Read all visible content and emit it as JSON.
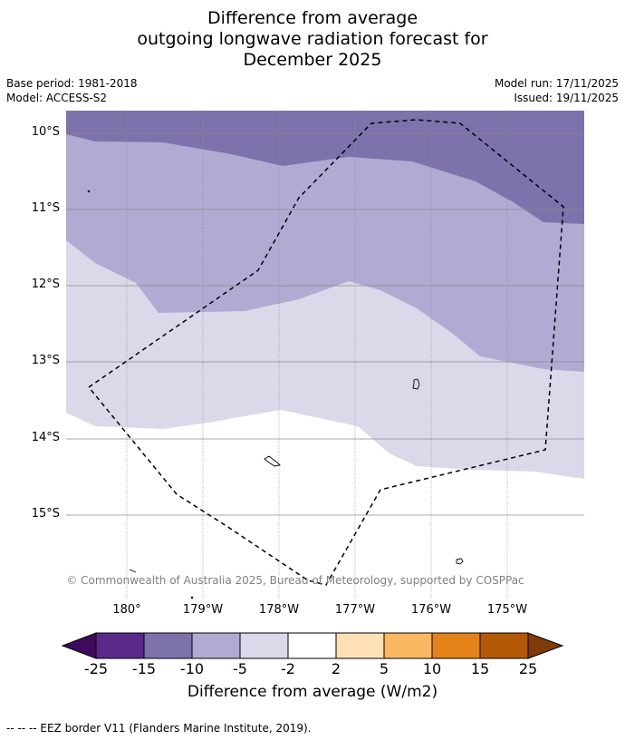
{
  "title": {
    "line1": "Difference from average",
    "line2": "outgoing longwave radiation forecast for",
    "line3": "December 2025"
  },
  "meta": {
    "base_period": "Base period: 1981-2018",
    "model": "Model: ACCESS-S2",
    "model_run": "Model run: 17/11/2025",
    "issued": "Issued: 19/11/2025"
  },
  "axes": {
    "y_labels": [
      "10°S",
      "11°S",
      "12°S",
      "13°S",
      "14°S",
      "15°S"
    ],
    "x_labels": [
      "180°",
      "179°W",
      "178°W",
      "177°W",
      "176°W",
      "175°W"
    ]
  },
  "colorbar": {
    "ticks": [
      "-25",
      "-15",
      "-10",
      "-5",
      "-2",
      "2",
      "5",
      "10",
      "15",
      "25"
    ],
    "colors": [
      "#3f0a5e",
      "#5a2a8a",
      "#7e72ac",
      "#b1abd3",
      "#d9d9ea",
      "#ffffff",
      "#fde0b6",
      "#fbb863",
      "#e38319",
      "#b35807",
      "#7f3b08"
    ],
    "title": "Difference from average (W/m2)"
  },
  "copyright": "© Commonwealth of Australia 2025, Bureau of Meteorology, supported by COSPPac",
  "footer": "--  --  -- EEZ border V11 (Flanders Marine Institute, 2019)."
}
